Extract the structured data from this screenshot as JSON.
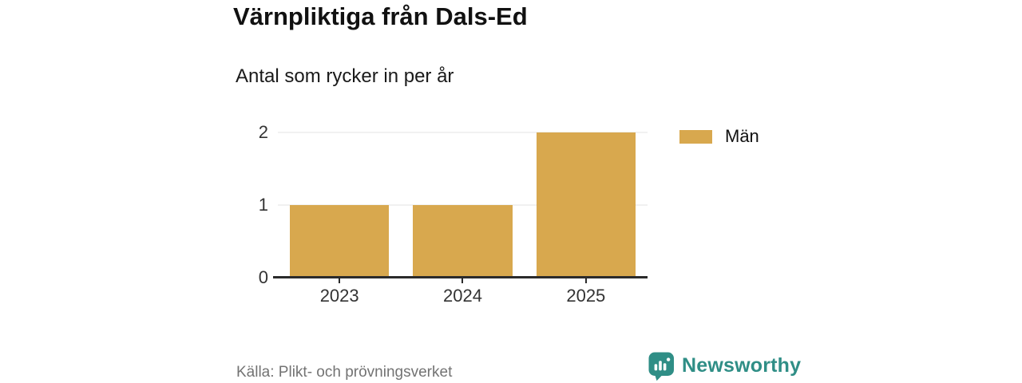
{
  "header": {
    "title": "Värnpliktiga från Dals-Ed",
    "subtitle": "Antal som rycker in per år"
  },
  "chart_data": {
    "type": "bar",
    "title": "Värnpliktiga från Dals-Ed",
    "subtitle": "Antal som rycker in per år",
    "categories": [
      "2023",
      "2024",
      "2025"
    ],
    "series": [
      {
        "name": "Män",
        "color": "#d8a84e",
        "values": [
          1,
          1,
          2
        ]
      }
    ],
    "xlabel": "",
    "ylabel": "",
    "ylim": [
      0,
      2
    ],
    "yticks": [
      0,
      1,
      2
    ],
    "grid": true,
    "legend_position": "right"
  },
  "footer": {
    "source": "Källa: Plikt- och prövningsverket",
    "brand": "Newsworthy"
  },
  "colors": {
    "bar": "#d8a84e",
    "brand_teal": "#2f8e86",
    "grid": "#e3e3e3",
    "axis": "#2b2b2b",
    "title_text": "#111111",
    "tick_text": "#333333",
    "muted_text": "#737373"
  }
}
